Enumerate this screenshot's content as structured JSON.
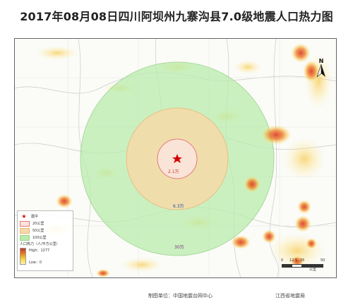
{
  "title": "2017年08月08日四川阿坝州九寨沟县7.0级地震人口热力图",
  "map": {
    "labels": {
      "epicenter_pop": "2.1万",
      "mid_pop": "6.3万",
      "outer_pop": "30万"
    }
  },
  "legend": {
    "epicenter": "震中",
    "ring_20": "20公里",
    "ring_50": "50公里",
    "ring_100": "100公里",
    "heat_title": "人口热力（人/平方公里）",
    "heat_high": "High：1277",
    "heat_low": "Low：0"
  },
  "scale": {
    "t0": "0",
    "t1": "12.5",
    "t2": "25",
    "t3": "50",
    "unit": "公里"
  },
  "north_label": "N",
  "footer": {
    "issuer": "制图单位：中国地震台网中心",
    "partner": "江西省地震局"
  }
}
